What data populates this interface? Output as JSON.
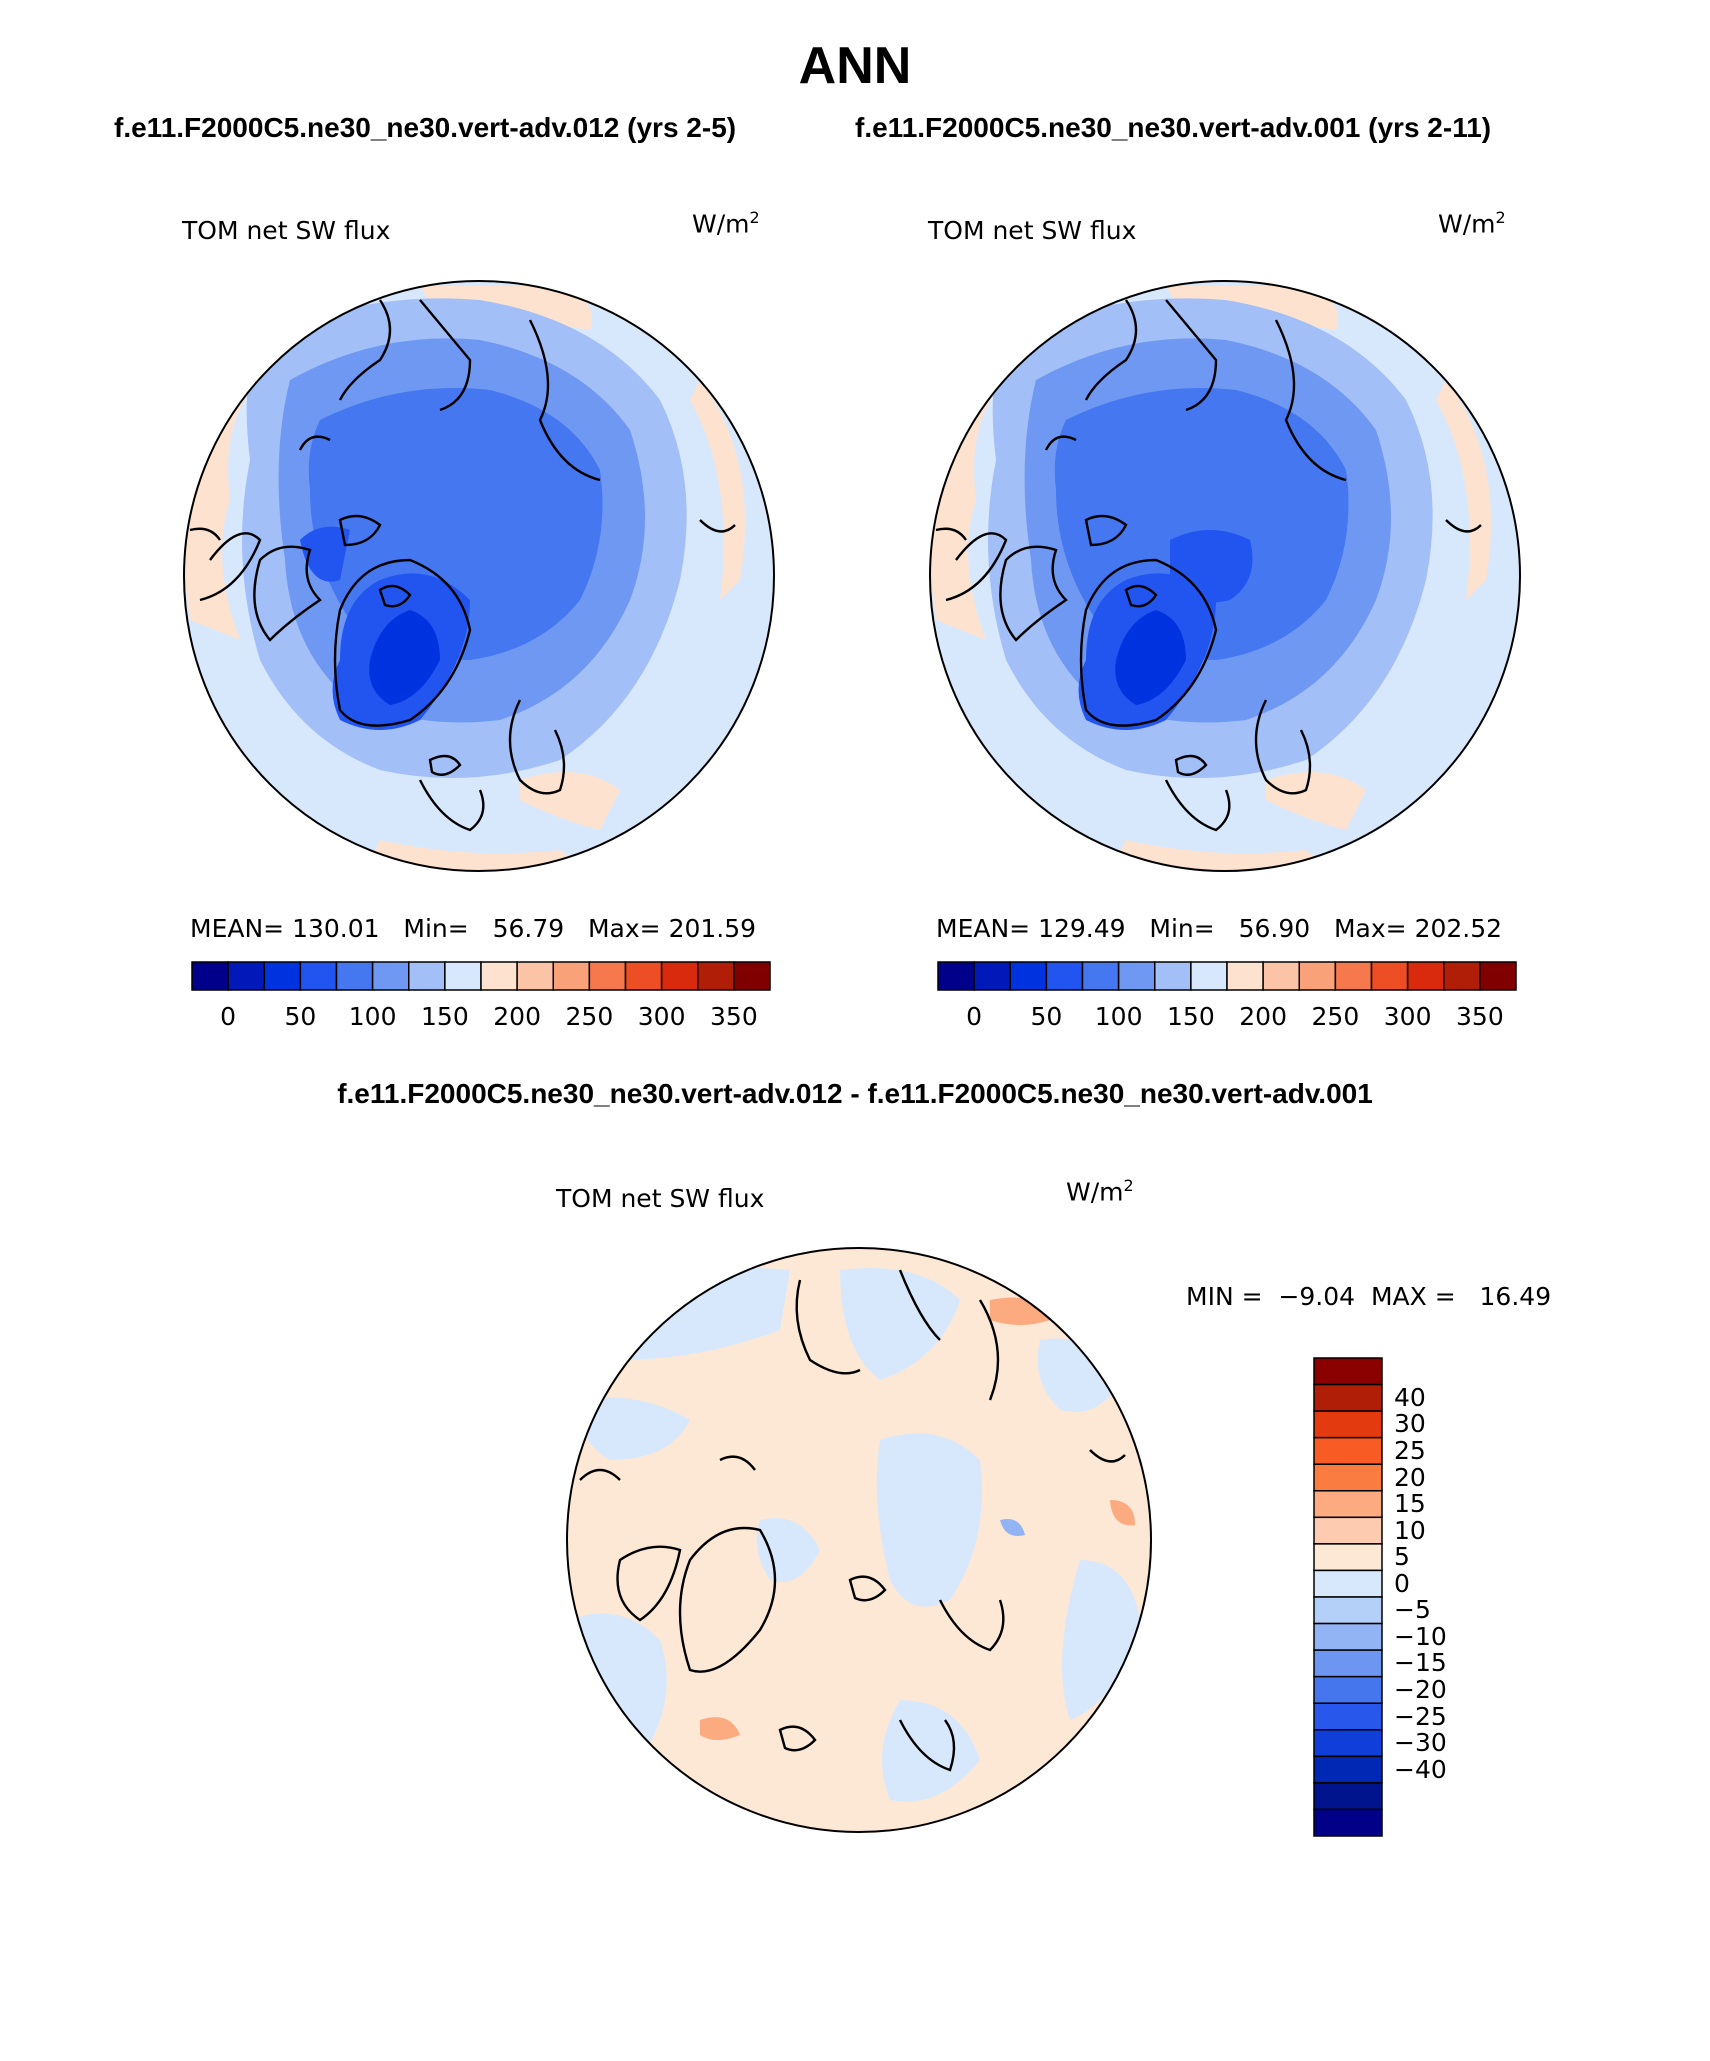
{
  "header": {
    "title": "ANN",
    "case_a": "f.e11.F2000C5.ne30_ne30.vert-adv.012 (yrs 2-5)",
    "case_b": "f.e11.F2000C5.ne30_ne30.vert-adv.001 (yrs 2-11)"
  },
  "panels": [
    {
      "label": "TOM net SW flux",
      "units": "W/m",
      "units_sup": "2",
      "stats": {
        "mean_label": "MEAN=",
        "mean": "130.01",
        "min_label": "Min=",
        "min": "56.79",
        "max_label": "Max=",
        "max": "201.59"
      }
    },
    {
      "label": "TOM net SW flux",
      "units": "W/m",
      "units_sup": "2",
      "stats": {
        "mean_label": "MEAN=",
        "mean": "129.49",
        "min_label": "Min=",
        "min": "56.90",
        "max_label": "Max=",
        "max": "202.52"
      }
    }
  ],
  "colorbar": {
    "colors": [
      "#00008b",
      "#0019b8",
      "#0033e0",
      "#2255f0",
      "#4477f0",
      "#6f98f3",
      "#a3bff7",
      "#d8e8fc",
      "#fde3cf",
      "#fbc4a6",
      "#f9a27a",
      "#f5794c",
      "#ee4e23",
      "#d92a0d",
      "#b01e08",
      "#800000"
    ],
    "tick_labels": [
      "0",
      "50",
      "100",
      "150",
      "200",
      "250",
      "300",
      "350"
    ]
  },
  "difference": {
    "title": "f.e11.F2000C5.ne30_ne30.vert-adv.012 - f.e11.F2000C5.ne30_ne30.vert-adv.001",
    "label": "TOM net SW flux",
    "units": "W/m",
    "units_sup": "2",
    "range": {
      "min_label": "MIN =",
      "min": "−9.04",
      "max_label": "MAX =",
      "max": "16.49"
    },
    "colorbar": {
      "colors": [
        "#8b0000",
        "#b01e08",
        "#e33a0f",
        "#f85c24",
        "#fb7c40",
        "#fcaa80",
        "#fdcbb0",
        "#fde8d6",
        "#d8e8fc",
        "#b4cff8",
        "#93b4f4",
        "#6d96f0",
        "#4576ee",
        "#2857ec",
        "#0f3fd8",
        "#0028b5",
        "#00148e",
        "#000088"
      ],
      "labels": [
        "40",
        "30",
        "25",
        "20",
        "15",
        "10",
        "5",
        "0",
        "−5",
        "−10",
        "−15",
        "−20",
        "−25",
        "−30",
        "−40"
      ]
    }
  }
}
